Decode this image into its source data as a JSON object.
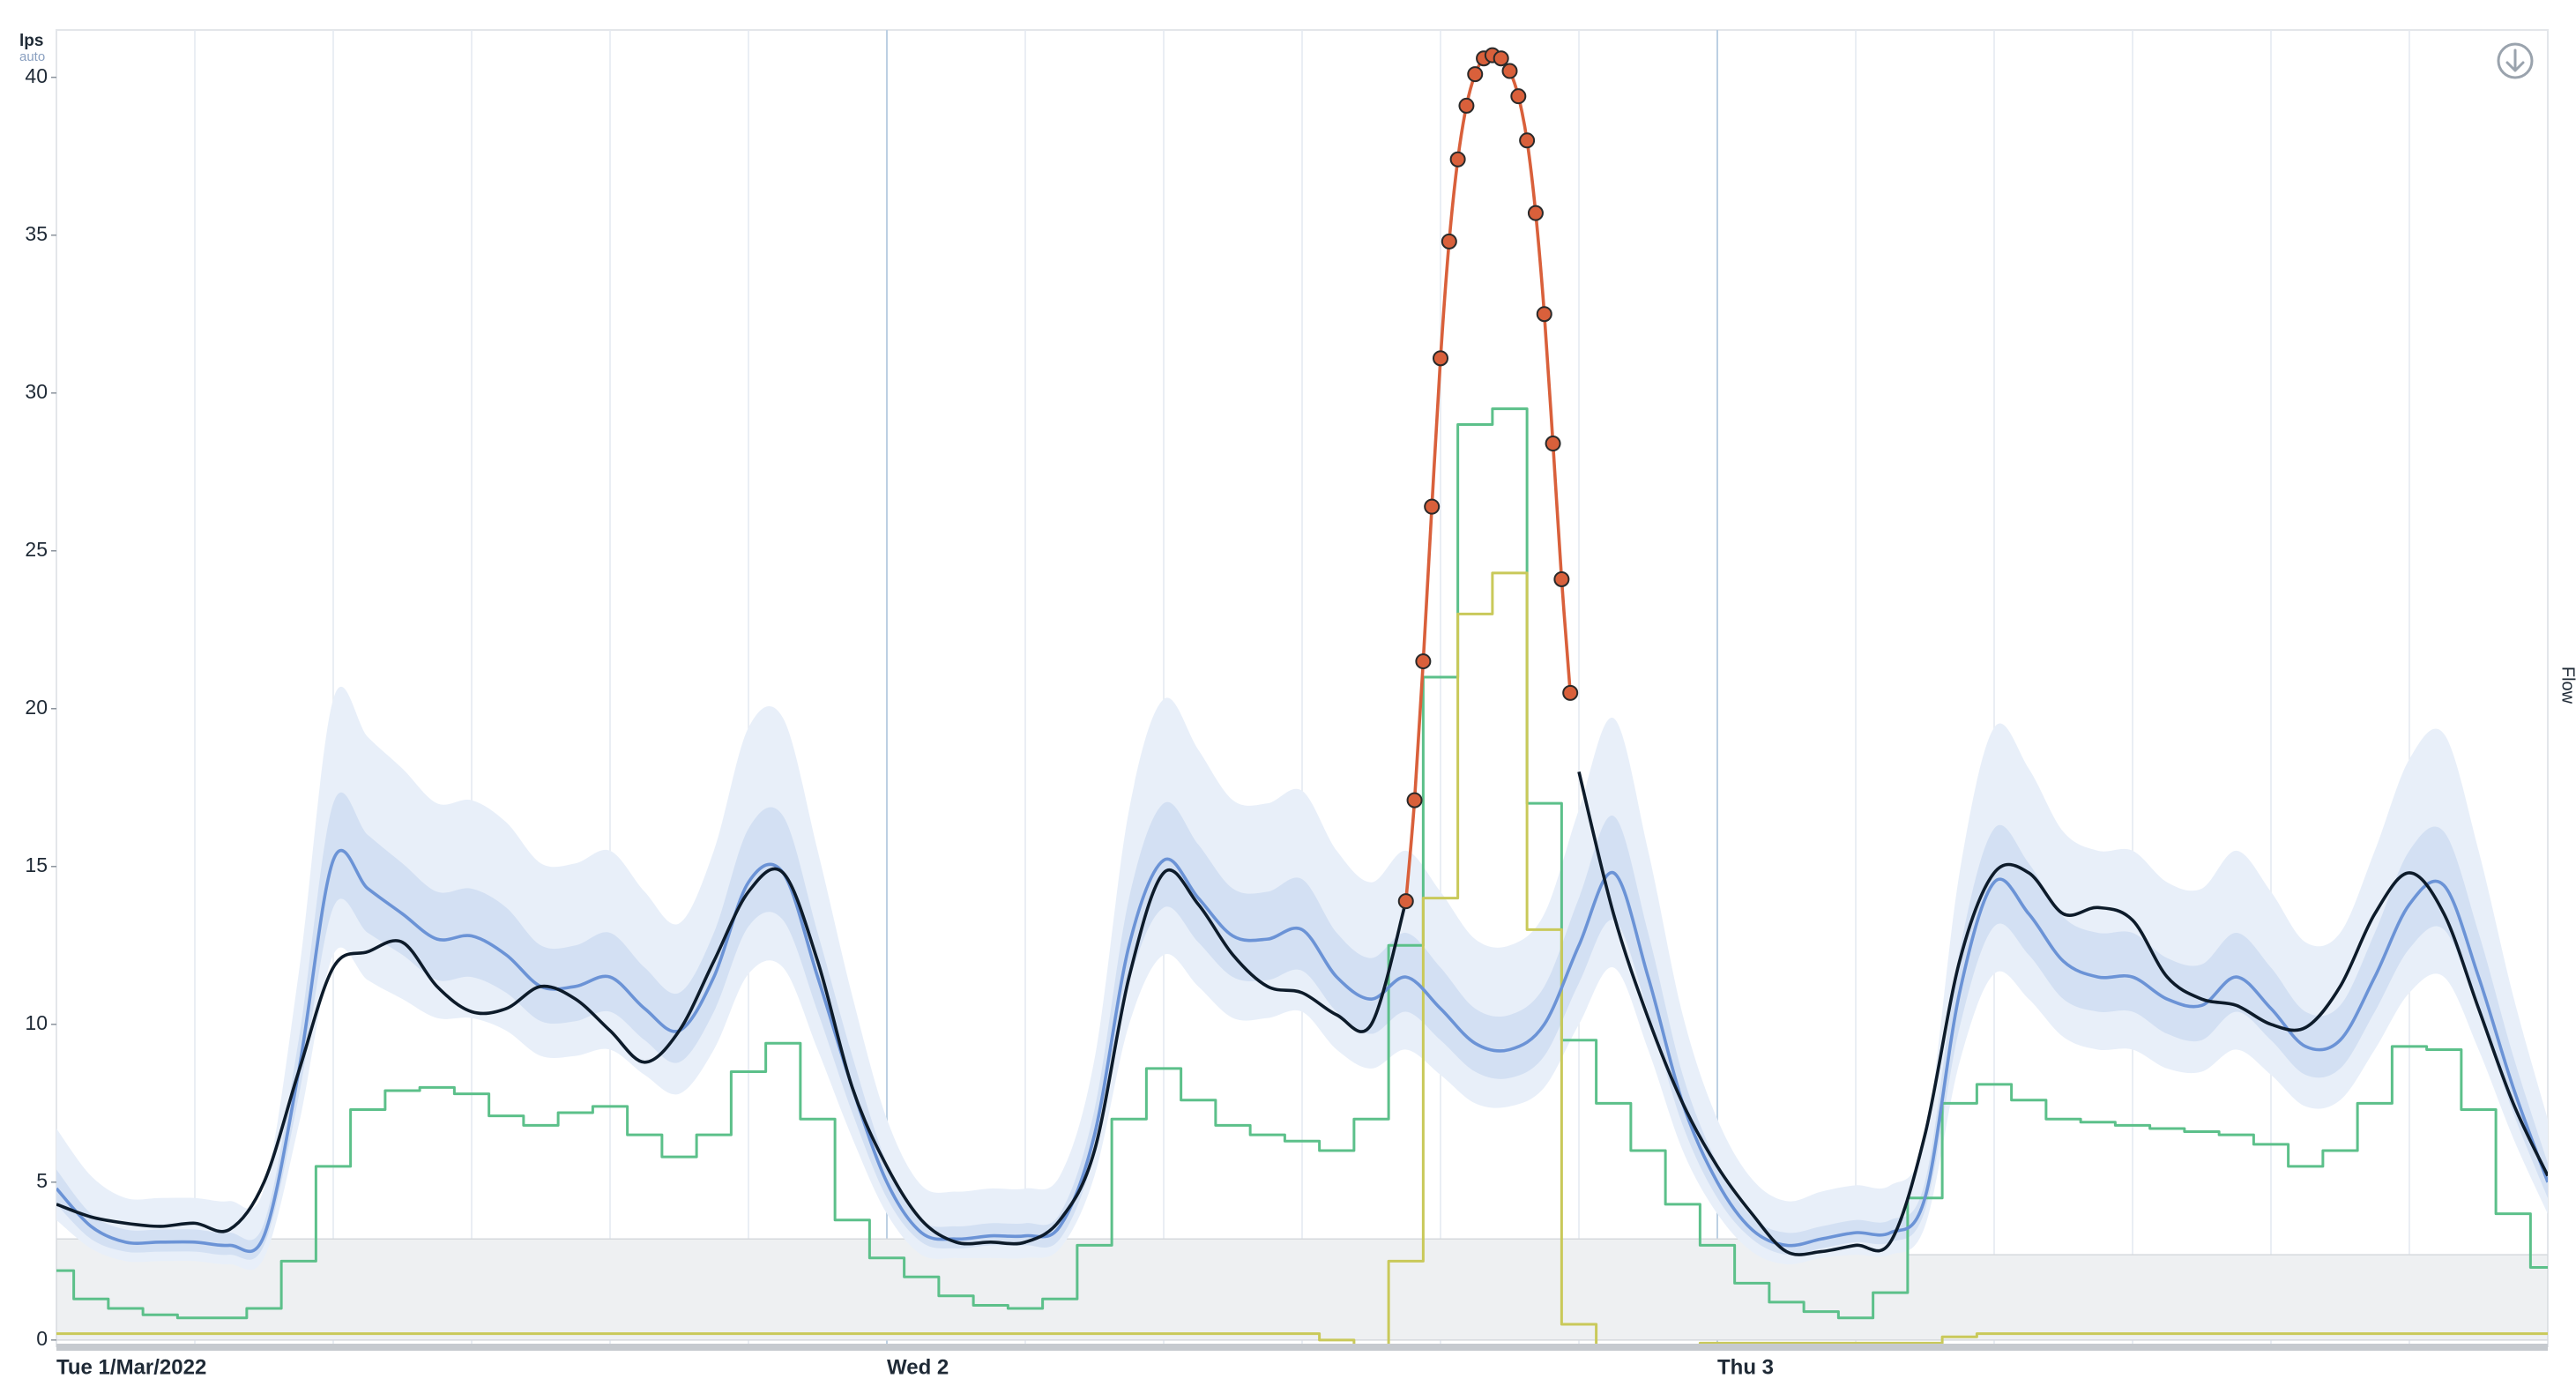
{
  "chart_data": {
    "type": "line",
    "y_axis_label": "lps",
    "y_axis_sublabel": "auto",
    "right_label": "Flow",
    "xlim": [
      0,
      72
    ],
    "ylim": [
      -0.2,
      41.5
    ],
    "yticks": [
      0,
      5,
      10,
      15,
      20,
      25,
      30,
      35,
      40
    ],
    "xticks": [
      {
        "value": 0,
        "label": "Tue 1/Mar/2022"
      },
      {
        "value": 24,
        "label": "Wed 2"
      },
      {
        "value": 48,
        "label": "Thu 3"
      }
    ],
    "xminor": [
      4,
      8,
      12,
      16,
      20,
      28,
      32,
      36,
      40,
      44,
      52,
      56,
      60,
      64,
      68
    ],
    "grid": true,
    "x": [
      0,
      1,
      2,
      3,
      4,
      5,
      6,
      7,
      8,
      9,
      10,
      11,
      12,
      13,
      14,
      15,
      16,
      17,
      18,
      19,
      20,
      21,
      22,
      23,
      24,
      25,
      26,
      27,
      28,
      29,
      30,
      31,
      32,
      33,
      34,
      35,
      36,
      37,
      38,
      39,
      40,
      41,
      42,
      43,
      44,
      45,
      46,
      47,
      48,
      49,
      50,
      51,
      52,
      53,
      54,
      55,
      56,
      57,
      58,
      59,
      60,
      61,
      62,
      63,
      64,
      65,
      66,
      67,
      68,
      69,
      70,
      71,
      72
    ],
    "threshold": {
      "color": "#eef0f2",
      "x": [
        0,
        53.5,
        72
      ],
      "values": [
        3.2,
        2.7,
        2.7
      ]
    },
    "bands": [
      {
        "color": "#e8eff9",
        "upper": [
          6.7,
          5.2,
          4.5,
          4.5,
          4.5,
          4.4,
          4.8,
          11.6,
          20.3,
          19.1,
          18.1,
          17.0,
          17.1,
          16.4,
          15.1,
          15.1,
          15.5,
          14.2,
          13.2,
          15.5,
          19.4,
          19.7,
          15.5,
          10.9,
          7.0,
          4.9,
          4.7,
          4.8,
          4.8,
          5.2,
          8.9,
          16.8,
          20.3,
          18.7,
          17.1,
          17.0,
          17.4,
          15.5,
          14.5,
          15.5,
          14.2,
          12.7,
          12.5,
          13.5,
          16.8,
          19.7,
          15.5,
          10.3,
          7.0,
          5.1,
          4.4,
          4.7,
          4.9,
          4.9,
          6.4,
          14.8,
          19.4,
          18.1,
          16.1,
          15.5,
          15.5,
          14.5,
          14.3,
          15.5,
          14.2,
          12.6,
          12.9,
          15.5,
          18.4,
          19.2,
          15.5,
          10.9,
          7.0
        ],
        "lower": [
          3.8,
          2.9,
          2.5,
          2.5,
          2.5,
          2.4,
          2.6,
          6.8,
          12.2,
          11.4,
          10.8,
          10.2,
          10.2,
          9.8,
          9.0,
          9.0,
          9.2,
          8.4,
          7.8,
          9.2,
          11.6,
          11.8,
          9.2,
          6.4,
          4.0,
          2.7,
          2.6,
          2.6,
          2.6,
          2.9,
          5.2,
          10.0,
          12.2,
          11.2,
          10.2,
          10.2,
          10.4,
          9.2,
          8.6,
          9.2,
          8.4,
          7.5,
          7.4,
          8.0,
          10.0,
          11.8,
          9.2,
          6.0,
          4.0,
          2.8,
          2.4,
          2.6,
          2.7,
          2.7,
          3.6,
          8.8,
          11.6,
          10.8,
          9.6,
          9.2,
          9.2,
          8.6,
          8.5,
          9.2,
          8.4,
          7.4,
          7.6,
          9.2,
          11.0,
          11.5,
          9.2,
          6.4,
          4.0
        ]
      },
      {
        "color": "#d3e0f3",
        "upper": [
          5.4,
          4.0,
          3.5,
          3.5,
          3.5,
          3.4,
          3.7,
          9.5,
          17.0,
          16.0,
          15.1,
          14.2,
          14.3,
          13.7,
          12.5,
          12.5,
          12.9,
          11.8,
          11.0,
          12.9,
          16.2,
          16.6,
          12.9,
          9.0,
          5.6,
          3.8,
          3.6,
          3.7,
          3.7,
          4.0,
          7.3,
          14.0,
          17.0,
          15.7,
          14.3,
          14.2,
          14.6,
          12.9,
          12.1,
          12.9,
          11.8,
          10.5,
          10.3,
          11.2,
          14.0,
          16.6,
          12.9,
          8.4,
          5.6,
          3.9,
          3.4,
          3.6,
          3.8,
          3.8,
          5.0,
          12.3,
          16.2,
          15.1,
          13.4,
          12.9,
          12.9,
          12.1,
          11.9,
          12.9,
          11.8,
          10.4,
          10.6,
          12.9,
          15.5,
          16.1,
          12.9,
          9.0,
          5.6
        ],
        "lower": [
          4.3,
          3.2,
          2.8,
          2.8,
          2.8,
          2.7,
          3.0,
          7.7,
          13.7,
          12.9,
          12.2,
          11.4,
          11.5,
          11.0,
          10.1,
          10.1,
          10.4,
          9.5,
          8.8,
          10.4,
          13.1,
          13.3,
          10.4,
          7.2,
          4.5,
          3.1,
          2.9,
          3.0,
          3.0,
          3.2,
          5.9,
          11.3,
          13.7,
          12.6,
          11.5,
          11.4,
          11.7,
          10.4,
          9.7,
          10.4,
          9.5,
          8.5,
          8.3,
          9.0,
          11.3,
          13.3,
          10.4,
          6.8,
          4.5,
          3.2,
          2.7,
          2.9,
          3.1,
          3.1,
          4.1,
          9.9,
          13.1,
          12.2,
          10.8,
          10.4,
          10.4,
          9.7,
          9.5,
          10.4,
          9.5,
          8.4,
          8.6,
          10.4,
          12.4,
          13.0,
          10.4,
          7.2,
          4.5
        ]
      }
    ],
    "series": [
      {
        "color": "#5cc08a",
        "style": "step",
        "values": [
          2.2,
          1.3,
          1.0,
          0.8,
          0.7,
          0.7,
          1.0,
          2.5,
          5.5,
          7.3,
          7.9,
          8.0,
          7.8,
          7.1,
          6.8,
          7.2,
          7.4,
          6.5,
          5.8,
          6.5,
          8.5,
          9.4,
          7.0,
          3.8,
          2.6,
          2.0,
          1.4,
          1.1,
          1.0,
          1.3,
          3.0,
          7.0,
          8.6,
          7.6,
          6.8,
          6.5,
          6.3,
          6.0,
          7.0,
          12.5,
          21,
          29,
          29.5,
          17,
          9.5,
          7.5,
          6,
          4.3,
          3.0,
          1.8,
          1.2,
          0.9,
          0.7,
          1.5,
          4.5,
          7.5,
          8.1,
          7.6,
          7.0,
          6.9,
          6.8,
          6.7,
          6.6,
          6.5,
          6.2,
          5.5,
          6.0,
          7.5,
          9.3,
          9.2,
          7.3,
          4.0,
          2.3
        ]
      },
      {
        "color": "#c9c95a",
        "style": "step",
        "values": [
          0.2,
          0.2,
          0.2,
          0.2,
          0.2,
          0.2,
          0.2,
          0.2,
          0.2,
          0.2,
          0.2,
          0.2,
          0.2,
          0.2,
          0.2,
          0.2,
          0.2,
          0.2,
          0.2,
          0.2,
          0.2,
          0.2,
          0.2,
          0.2,
          0.2,
          0.2,
          0.2,
          0.2,
          0.2,
          0.2,
          0.2,
          0.2,
          0.2,
          0.2,
          0.2,
          0.2,
          0.2,
          0.0,
          -0.5,
          2.5,
          14,
          23,
          24.3,
          13,
          0.5,
          -0.5,
          -0.2,
          -0.2,
          -0.1,
          -0.1,
          -0.1,
          -0.1,
          -0.1,
          -0.1,
          -0.1,
          0.1,
          0.2,
          0.2,
          0.2,
          0.2,
          0.2,
          0.2,
          0.2,
          0.2,
          0.2,
          0.2,
          0.2,
          0.2,
          0.2,
          0.2,
          0.2,
          0.2,
          0.2
        ]
      },
      {
        "color": "#6b93d6",
        "style": "smooth",
        "values": [
          4.8,
          3.6,
          3.1,
          3.1,
          3.1,
          3.0,
          3.3,
          8.5,
          15.2,
          14.3,
          13.5,
          12.7,
          12.8,
          12.2,
          11.2,
          11.2,
          11.5,
          10.5,
          9.8,
          11.5,
          14.5,
          14.8,
          11.5,
          8.0,
          5.0,
          3.4,
          3.2,
          3.3,
          3.3,
          3.6,
          6.5,
          12.5,
          15.2,
          14.0,
          12.8,
          12.7,
          13.0,
          11.5,
          10.8,
          11.5,
          10.5,
          9.4,
          9.2,
          10.0,
          12.5,
          14.8,
          11.5,
          7.5,
          5.0,
          3.5,
          3.0,
          3.2,
          3.4,
          3.4,
          4.5,
          11.0,
          14.5,
          13.5,
          12.0,
          11.5,
          11.5,
          10.8,
          10.6,
          11.5,
          10.5,
          9.3,
          9.5,
          11.5,
          13.8,
          14.4,
          11.5,
          8.0,
          5.0
        ]
      },
      {
        "color": "#0d1b2a",
        "style": "smooth",
        "values": [
          4.3,
          3.9,
          3.7,
          3.6,
          3.7,
          3.5,
          5.0,
          8.5,
          11.8,
          12.3,
          12.6,
          11.2,
          10.4,
          10.5,
          11.2,
          10.8,
          9.8,
          8.8,
          9.8,
          12.0,
          14.2,
          14.8,
          12.0,
          8.0,
          5.5,
          3.8,
          3.1,
          3.1,
          3.1,
          3.8,
          6.0,
          11.5,
          14.8,
          13.8,
          12.2,
          11.2,
          11.0,
          10.3,
          10.0,
          13.9,
          null,
          null,
          null,
          null,
          18.0,
          13.5,
          10.2,
          7.5,
          5.5,
          4.0,
          2.8,
          2.8,
          3.0,
          3.1,
          6.5,
          12.0,
          14.8,
          14.8,
          13.5,
          13.7,
          13.3,
          11.5,
          10.8,
          10.6,
          10.0,
          9.9,
          11.2,
          13.5,
          14.8,
          13.5,
          10.5,
          7.5,
          5.2
        ]
      },
      {
        "color": "#d9603b",
        "style": "smooth",
        "markers": true,
        "x": [
          39,
          39.25,
          39.5,
          39.75,
          40,
          40.25,
          40.5,
          40.75,
          41,
          41.25,
          41.5,
          41.75,
          42,
          42.25,
          42.5,
          42.75,
          43,
          43.25,
          43.5,
          43.75
        ],
        "values": [
          13.9,
          17.1,
          21.5,
          26.4,
          31.1,
          34.8,
          37.4,
          39.1,
          40.1,
          40.6,
          40.7,
          40.6,
          40.2,
          39.4,
          38.0,
          35.7,
          32.5,
          28.4,
          24.1,
          20.5
        ]
      }
    ]
  }
}
